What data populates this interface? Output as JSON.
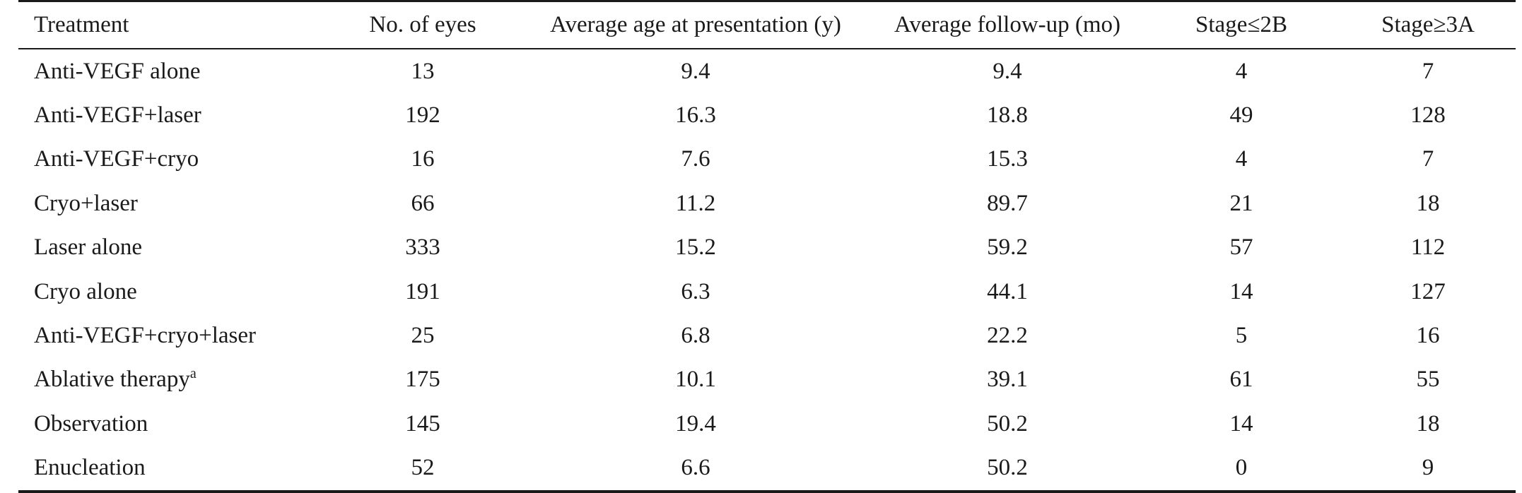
{
  "table": {
    "headers": [
      "Treatment",
      "No. of eyes",
      "Average age at presentation (y)",
      "Average follow-up (mo)",
      "Stage≤2B",
      "Stage≥3A"
    ],
    "rows": [
      {
        "treatment": "Anti-VEGF alone",
        "note": "",
        "eyes": "13",
        "age": "9.4",
        "followup": "9.4",
        "stage_le_2b": "4",
        "stage_ge_3a": "7"
      },
      {
        "treatment": "Anti-VEGF+laser",
        "note": "",
        "eyes": "192",
        "age": "16.3",
        "followup": "18.8",
        "stage_le_2b": "49",
        "stage_ge_3a": "128"
      },
      {
        "treatment": "Anti-VEGF+cryo",
        "note": "",
        "eyes": "16",
        "age": "7.6",
        "followup": "15.3",
        "stage_le_2b": "4",
        "stage_ge_3a": "7"
      },
      {
        "treatment": "Cryo+laser",
        "note": "",
        "eyes": "66",
        "age": "11.2",
        "followup": "89.7",
        "stage_le_2b": "21",
        "stage_ge_3a": "18"
      },
      {
        "treatment": "Laser alone",
        "note": "",
        "eyes": "333",
        "age": "15.2",
        "followup": "59.2",
        "stage_le_2b": "57",
        "stage_ge_3a": "112"
      },
      {
        "treatment": "Cryo alone",
        "note": "",
        "eyes": "191",
        "age": "6.3",
        "followup": "44.1",
        "stage_le_2b": "14",
        "stage_ge_3a": "127"
      },
      {
        "treatment": "Anti-VEGF+cryo+laser",
        "note": "",
        "eyes": "25",
        "age": "6.8",
        "followup": "22.2",
        "stage_le_2b": "5",
        "stage_ge_3a": "16"
      },
      {
        "treatment": "Ablative therapy",
        "note": "a",
        "eyes": "175",
        "age": "10.1",
        "followup": "39.1",
        "stage_le_2b": "61",
        "stage_ge_3a": "55"
      },
      {
        "treatment": "Observation",
        "note": "",
        "eyes": "145",
        "age": "19.4",
        "followup": "50.2",
        "stage_le_2b": "14",
        "stage_ge_3a": "18"
      },
      {
        "treatment": "Enucleation",
        "note": "",
        "eyes": "52",
        "age": "6.6",
        "followup": "50.2",
        "stage_le_2b": "0",
        "stage_ge_3a": "9"
      }
    ]
  }
}
